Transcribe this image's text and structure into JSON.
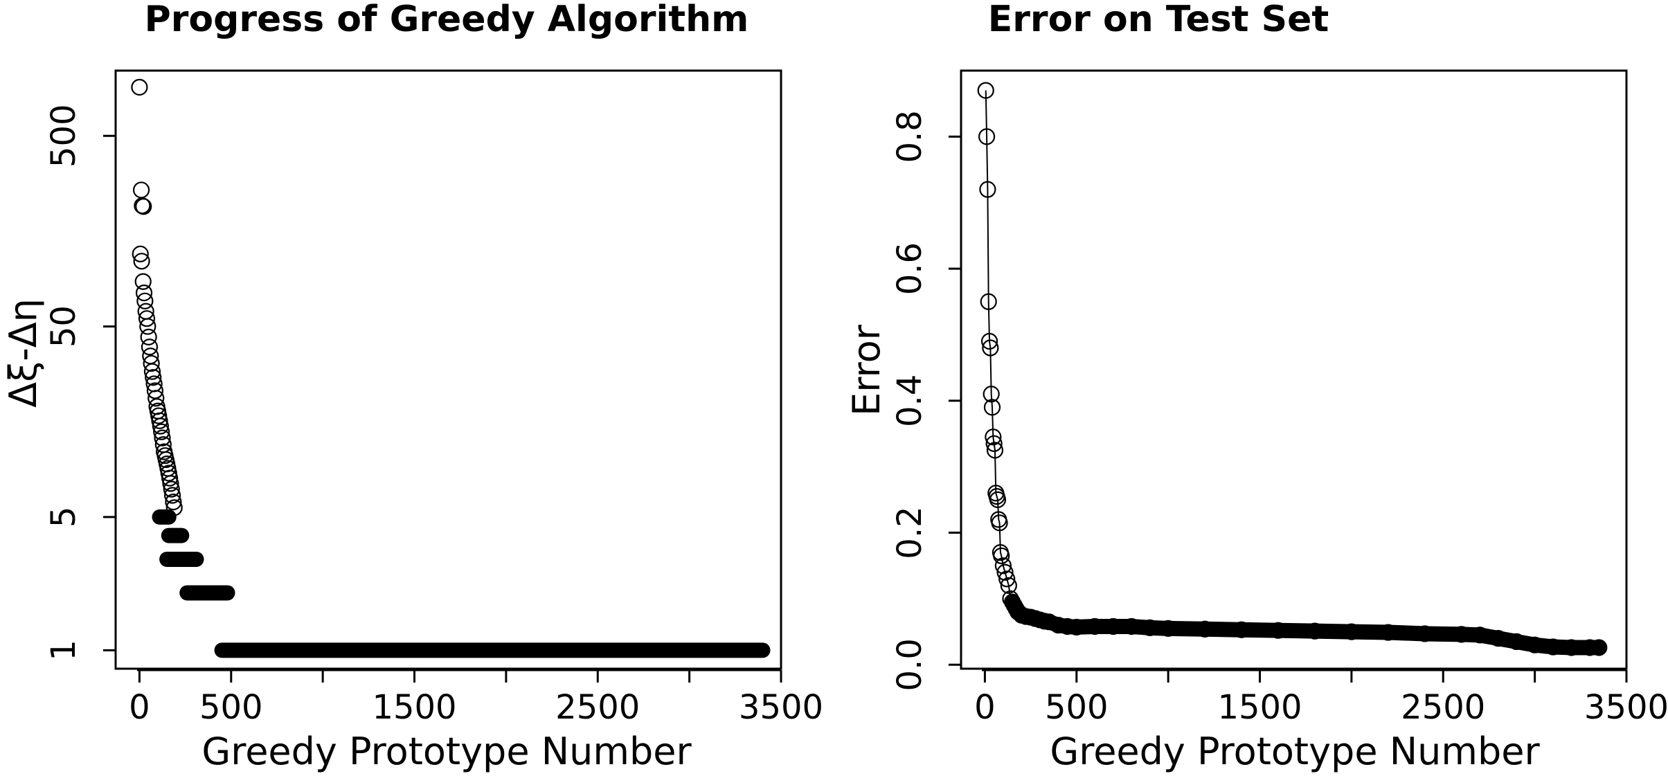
{
  "chart_data": [
    {
      "type": "scatter",
      "title": "Progress of Greedy Algorithm",
      "xlabel": "Greedy Prototype Number",
      "ylabel": "Δξ-Δη",
      "xlim": [
        -130,
        3500
      ],
      "ylim": [
        0.8,
        1100
      ],
      "ylog": true,
      "grid": false,
      "legend": "none",
      "xticks": [
        0,
        500,
        1000,
        1500,
        2000,
        2500,
        3000,
        3500
      ],
      "xtick_labels": [
        "0",
        "500",
        "",
        "1500",
        "",
        "2500",
        "",
        "3500"
      ],
      "yticks": [
        1,
        5,
        50,
        500
      ],
      "ytick_labels": [
        "1",
        "5",
        "50",
        "500"
      ],
      "series": [
        {
          "marker": "open-circle",
          "points": [
            [
              0,
              900
            ],
            [
              10,
              260
            ],
            [
              15,
              215
            ],
            [
              22,
              213
            ],
            [
              5,
              120
            ],
            [
              12,
              110
            ],
            [
              20,
              86
            ],
            [
              25,
              75
            ],
            [
              30,
              68
            ],
            [
              35,
              60
            ],
            [
              40,
              55
            ],
            [
              45,
              50
            ],
            [
              50,
              44
            ],
            [
              55,
              39
            ],
            [
              60,
              35
            ],
            [
              65,
              32
            ],
            [
              70,
              29
            ],
            [
              75,
              27
            ],
            [
              80,
              25
            ],
            [
              85,
              23
            ],
            [
              90,
              21
            ],
            [
              95,
              19
            ],
            [
              100,
              18
            ],
            [
              105,
              17
            ],
            [
              110,
              16
            ],
            [
              115,
              15
            ],
            [
              120,
              14
            ],
            [
              125,
              13
            ],
            [
              130,
              12
            ],
            [
              135,
              11
            ],
            [
              140,
              10.5
            ],
            [
              145,
              10
            ],
            [
              150,
              9.5
            ],
            [
              155,
              9
            ],
            [
              160,
              8.5
            ],
            [
              165,
              8
            ],
            [
              170,
              7.5
            ],
            [
              175,
              7
            ],
            [
              180,
              6.5
            ],
            [
              185,
              6
            ],
            [
              190,
              5.6
            ]
          ]
        },
        {
          "marker": "filled-band",
          "bands": [
            {
              "value": 5,
              "from": 110,
              "to": 160
            },
            {
              "value": 4,
              "from": 160,
              "to": 230
            },
            {
              "value": 3,
              "from": 150,
              "to": 310
            },
            {
              "value": 2,
              "from": 260,
              "to": 480
            },
            {
              "value": 1,
              "from": 450,
              "to": 3400
            }
          ]
        }
      ]
    },
    {
      "type": "line",
      "title": "Error on Test Set",
      "xlabel": "Greedy Prototype Number",
      "ylabel": "Error",
      "xlim": [
        -130,
        3500
      ],
      "ylim": [
        -0.006,
        0.9
      ],
      "grid": false,
      "legend": "none",
      "xticks": [
        0,
        500,
        1000,
        1500,
        2000,
        2500,
        3000,
        3500
      ],
      "xtick_labels": [
        "0",
        "500",
        "",
        "1500",
        "",
        "2500",
        "",
        "3500"
      ],
      "yticks": [
        0.0,
        0.2,
        0.4,
        0.6,
        0.8
      ],
      "ytick_labels": [
        "0.0",
        "0.2",
        "0.4",
        "0.6",
        "0.8"
      ],
      "series": [
        {
          "marker": "open-circle",
          "x": [
            5,
            10,
            15,
            20,
            25,
            30,
            35,
            40,
            45,
            50,
            55,
            60,
            65,
            70,
            75,
            80,
            85,
            90,
            100,
            110,
            120,
            130,
            140,
            150,
            160,
            170,
            180,
            190,
            200,
            225,
            250,
            275,
            300,
            325,
            350,
            400,
            450,
            500,
            600,
            700,
            800,
            900,
            1000,
            1200,
            1400,
            1600,
            1800,
            2000,
            2200,
            2400,
            2600,
            2700,
            2800,
            2900,
            3000,
            3100,
            3200,
            3300,
            3350
          ],
          "y": [
            0.87,
            0.8,
            0.72,
            0.55,
            0.49,
            0.48,
            0.41,
            0.39,
            0.345,
            0.335,
            0.325,
            0.26,
            0.255,
            0.25,
            0.22,
            0.215,
            0.17,
            0.165,
            0.15,
            0.14,
            0.13,
            0.12,
            0.1,
            0.095,
            0.09,
            0.085,
            0.08,
            0.078,
            0.075,
            0.073,
            0.072,
            0.07,
            0.068,
            0.066,
            0.065,
            0.06,
            0.058,
            0.057,
            0.058,
            0.058,
            0.058,
            0.056,
            0.055,
            0.054,
            0.053,
            0.052,
            0.051,
            0.05,
            0.049,
            0.047,
            0.046,
            0.045,
            0.04,
            0.035,
            0.03,
            0.027,
            0.026,
            0.026,
            0.026
          ]
        }
      ]
    }
  ]
}
